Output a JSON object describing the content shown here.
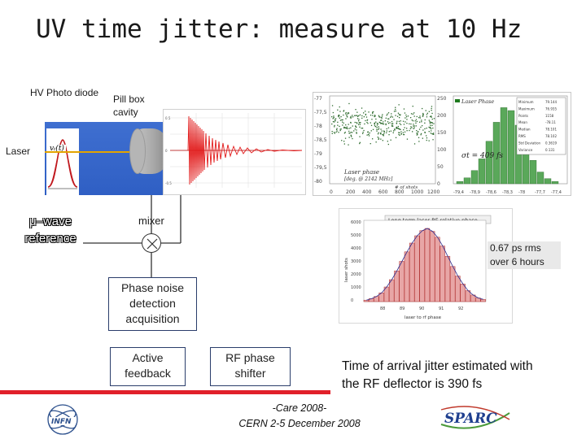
{
  "slide": {
    "title": "UV time jitter: measure at 10 Hz"
  },
  "labels": {
    "hv_photo_diode": "HV Photo diode",
    "pill_box_cavity": "Pill box cavity",
    "laser": "Laser",
    "vt_label": "vₜ(t)",
    "wave_reference": "μ–wave reference",
    "mixer": "mixer"
  },
  "boxes": {
    "phase_noise": "Phase noise detection acquisition",
    "active_feedback": "Active feedback",
    "rf_phase_shifter": "RF phase shifter"
  },
  "stats": {
    "rms_note": "0.67 ps rms over 6 hours"
  },
  "arrival_text": "Time of arrival jitter estimated with the RF deflector is 390 fs",
  "footer": {
    "line1": "-Care 2008-",
    "line2": "CERN 2-5 December 2008"
  },
  "logos": {
    "left": "INFN",
    "right": "SPARC"
  },
  "scatter_plot": {
    "y_ticks": [
      "-77",
      "-77,5",
      "-78",
      "-78,5",
      "-79",
      "-79,5",
      "-80"
    ],
    "x_ticks": [
      "0",
      "200",
      "400",
      "600",
      "800",
      "1000",
      "1200"
    ],
    "x_label": "# of shots",
    "legend": "Laser phase",
    "legend_sub": "[deg. @ 2142 MHz]",
    "hist_y_ticks": [
      "250",
      "200",
      "150",
      "100",
      "50",
      "0"
    ],
    "hist_legend": "Laser Phase",
    "sigma": "σt = 409 fs",
    "hist_x_ticks": [
      "-79,4",
      "-78,9",
      "-78,6",
      "-78,3",
      "-78",
      "-77,7",
      "-77,4"
    ],
    "stat_rows": [
      [
        "Minimum",
        "79.144"
      ],
      [
        "Maximum",
        "76.935"
      ],
      [
        "Points",
        "1158"
      ],
      [
        "Mean",
        "-78.11"
      ],
      [
        "Median",
        "78.101"
      ],
      [
        "RMS",
        "78.102"
      ],
      [
        "Std Deviation",
        "0.3619"
      ],
      [
        "Variance",
        "0.131"
      ]
    ]
  },
  "histogram": {
    "title": "Long term laser RF relative phase",
    "y_label": "laser shots",
    "x_label": "laser to rf phase",
    "y_ticks": [
      "6000",
      "5000",
      "4000",
      "3000",
      "2000",
      "1000",
      "0"
    ],
    "x_ticks": [
      "88",
      "89",
      "90",
      "91",
      "92"
    ]
  },
  "colors": {
    "title": "#1a1a1a",
    "accent_red": "#e1202a",
    "box_border": "#2a3d6b",
    "scatter_points": "#2e6b2e",
    "hist_bar_fill": "#e8a6a6",
    "hist_bar_stroke": "#b03030",
    "fit_curve": "#2b2b8c"
  }
}
